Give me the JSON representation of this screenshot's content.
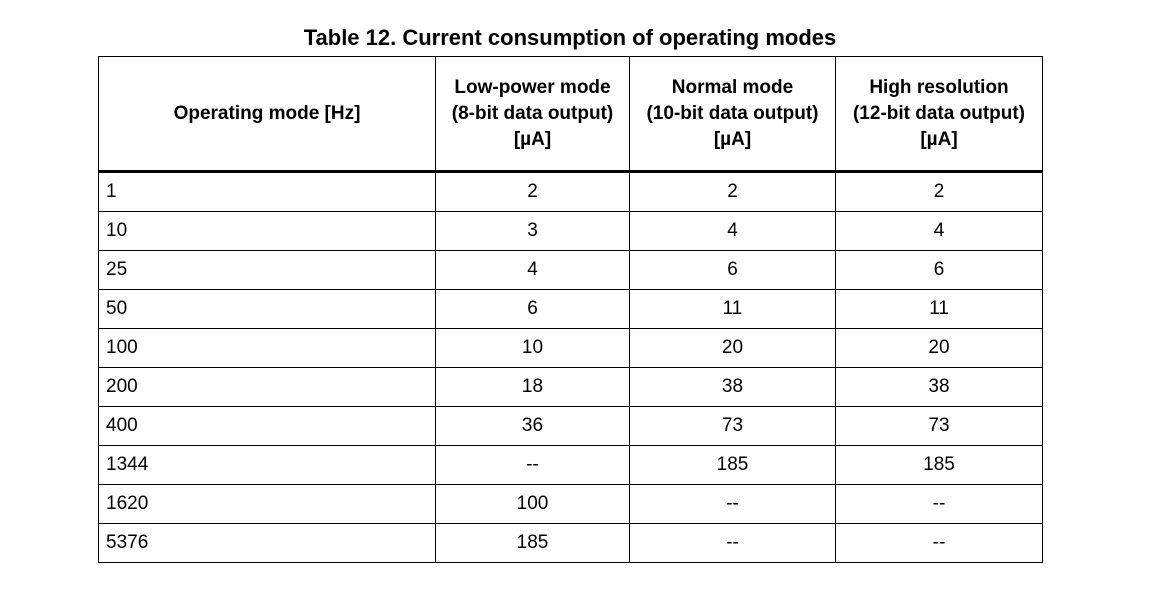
{
  "caption": "Table 12. Current consumption of operating modes",
  "headers": [
    {
      "lines": [
        "Operating mode [Hz]"
      ]
    },
    {
      "lines": [
        "Low-power mode",
        "(8-bit data output)",
        "[µA]"
      ]
    },
    {
      "lines": [
        "Normal mode",
        "(10-bit data output)",
        "[µA]"
      ]
    },
    {
      "lines": [
        "High resolution",
        "(12-bit data output)",
        "[µA]"
      ]
    }
  ],
  "rows": [
    [
      "1",
      "2",
      "2",
      "2"
    ],
    [
      "10",
      "3",
      "4",
      "4"
    ],
    [
      "25",
      "4",
      "6",
      "6"
    ],
    [
      "50",
      "6",
      "11",
      "11"
    ],
    [
      "100",
      "10",
      "20",
      "20"
    ],
    [
      "200",
      "18",
      "38",
      "38"
    ],
    [
      "400",
      "36",
      "73",
      "73"
    ],
    [
      "1344",
      "--",
      "185",
      "185"
    ],
    [
      "1620",
      "100",
      "--",
      "--"
    ],
    [
      "5376",
      "185",
      "--",
      "--"
    ]
  ]
}
